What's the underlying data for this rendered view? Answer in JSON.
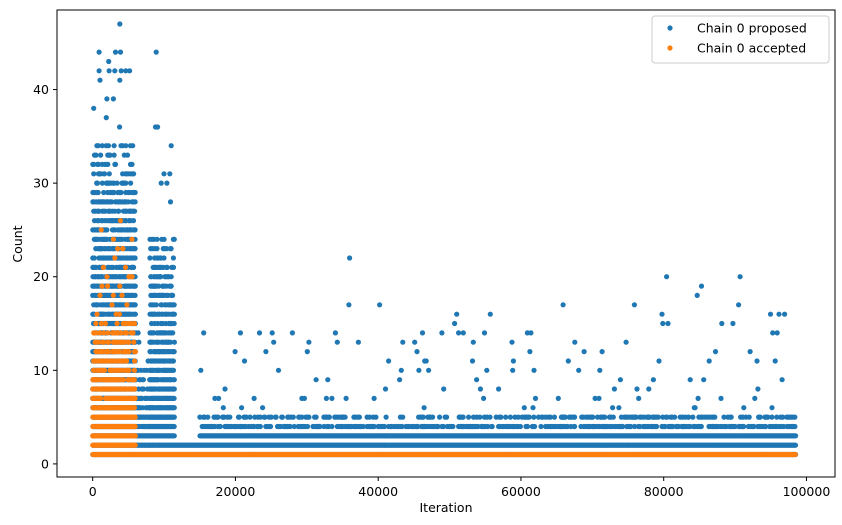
{
  "chart_data": {
    "type": "scatter",
    "xlabel": "Iteration",
    "ylabel": "Count",
    "xlim": [
      -5000,
      104000
    ],
    "ylim": [
      -1.4,
      48.5
    ],
    "xticks": [
      0,
      20000,
      40000,
      60000,
      80000,
      100000
    ],
    "yticks": [
      0,
      10,
      20,
      30,
      40
    ],
    "legend_position": "top-right",
    "series": [
      {
        "name": "Chain 0 proposed",
        "color": "#1f77b4",
        "marker": "dot",
        "segments": [
          {
            "x_start": 0,
            "x_end": 6000,
            "y_min": 1,
            "y_max": 34,
            "sparse_max": 44
          },
          {
            "x_start": 6000,
            "x_end": 8000,
            "y_min": 1,
            "y_max": 10,
            "sparse_max": 15
          },
          {
            "x_start": 8000,
            "x_end": 11500,
            "y_min": 1,
            "y_max": 24,
            "sparse_max": 36
          },
          {
            "x_start": 11500,
            "x_end": 15000,
            "y_min": 1,
            "y_max": 2,
            "sparse_max": 2
          },
          {
            "x_start": 15000,
            "x_end": 41000,
            "y_min": 1,
            "y_max": 5,
            "sparse_max": 14
          },
          {
            "x_start": 41000,
            "x_end": 71500,
            "y_min": 1,
            "y_max": 5,
            "sparse_max": 14
          },
          {
            "x_start": 71500,
            "x_end": 98500,
            "y_min": 1,
            "y_max": 5,
            "sparse_max": 16
          }
        ],
        "outliers": [
          {
            "x": 3800,
            "y": 47
          },
          {
            "x": 900,
            "y": 44
          },
          {
            "x": 3200,
            "y": 44
          },
          {
            "x": 3900,
            "y": 44
          },
          {
            "x": 8900,
            "y": 44
          },
          {
            "x": 900,
            "y": 42
          },
          {
            "x": 2300,
            "y": 42
          },
          {
            "x": 3100,
            "y": 42
          },
          {
            "x": 3800,
            "y": 41
          },
          {
            "x": 8800,
            "y": 36
          },
          {
            "x": 9100,
            "y": 36
          },
          {
            "x": 11000,
            "y": 34
          },
          {
            "x": 10800,
            "y": 31
          },
          {
            "x": 10400,
            "y": 30
          },
          {
            "x": 9600,
            "y": 30
          },
          {
            "x": 10900,
            "y": 28
          },
          {
            "x": 36000,
            "y": 22
          },
          {
            "x": 80400,
            "y": 20
          },
          {
            "x": 90700,
            "y": 20
          },
          {
            "x": 85300,
            "y": 19
          },
          {
            "x": 84700,
            "y": 18
          },
          {
            "x": 35900,
            "y": 17
          },
          {
            "x": 40200,
            "y": 17
          },
          {
            "x": 65900,
            "y": 17
          },
          {
            "x": 75900,
            "y": 17
          },
          {
            "x": 90500,
            "y": 17
          },
          {
            "x": 51000,
            "y": 16
          },
          {
            "x": 55700,
            "y": 16
          },
          {
            "x": 50700,
            "y": 15
          },
          {
            "x": 80600,
            "y": 15
          },
          {
            "x": 89700,
            "y": 15
          },
          {
            "x": 20700,
            "y": 14
          },
          {
            "x": 34000,
            "y": 14
          },
          {
            "x": 54900,
            "y": 14
          },
          {
            "x": 60900,
            "y": 14
          },
          {
            "x": 61400,
            "y": 14
          },
          {
            "x": 95900,
            "y": 14
          },
          {
            "x": 15500,
            "y": 5
          },
          {
            "x": 16600,
            "y": 4
          },
          {
            "x": 73100,
            "y": 8
          },
          {
            "x": 76500,
            "y": 7
          },
          {
            "x": 45700,
            "y": 10
          },
          {
            "x": 93200,
            "y": 8
          }
        ]
      },
      {
        "name": "Chain 0 accepted",
        "color": "#ff7f0e",
        "marker": "dot",
        "segments": [
          {
            "x_start": 0,
            "x_end": 6000,
            "y_min": 1,
            "y_max": 15,
            "sparse_max": 26
          },
          {
            "x_start": 6000,
            "x_end": 98500,
            "y_min": 1,
            "y_max": 1,
            "sparse_max": 1
          }
        ],
        "outliers": [
          {
            "x": 3900,
            "y": 26
          },
          {
            "x": 1200,
            "y": 25
          },
          {
            "x": 2900,
            "y": 24
          },
          {
            "x": 5500,
            "y": 24
          },
          {
            "x": 3500,
            "y": 23
          },
          {
            "x": 4200,
            "y": 23
          },
          {
            "x": 3100,
            "y": 22
          },
          {
            "x": 1500,
            "y": 21
          },
          {
            "x": 4600,
            "y": 21
          },
          {
            "x": 5200,
            "y": 20
          },
          {
            "x": 2000,
            "y": 20
          },
          {
            "x": 3800,
            "y": 19
          },
          {
            "x": 1300,
            "y": 19
          },
          {
            "x": 4100,
            "y": 18
          },
          {
            "x": 2700,
            "y": 17
          },
          {
            "x": 4800,
            "y": 17
          },
          {
            "x": 3300,
            "y": 16
          },
          {
            "x": 600,
            "y": 16
          }
        ]
      }
    ]
  }
}
